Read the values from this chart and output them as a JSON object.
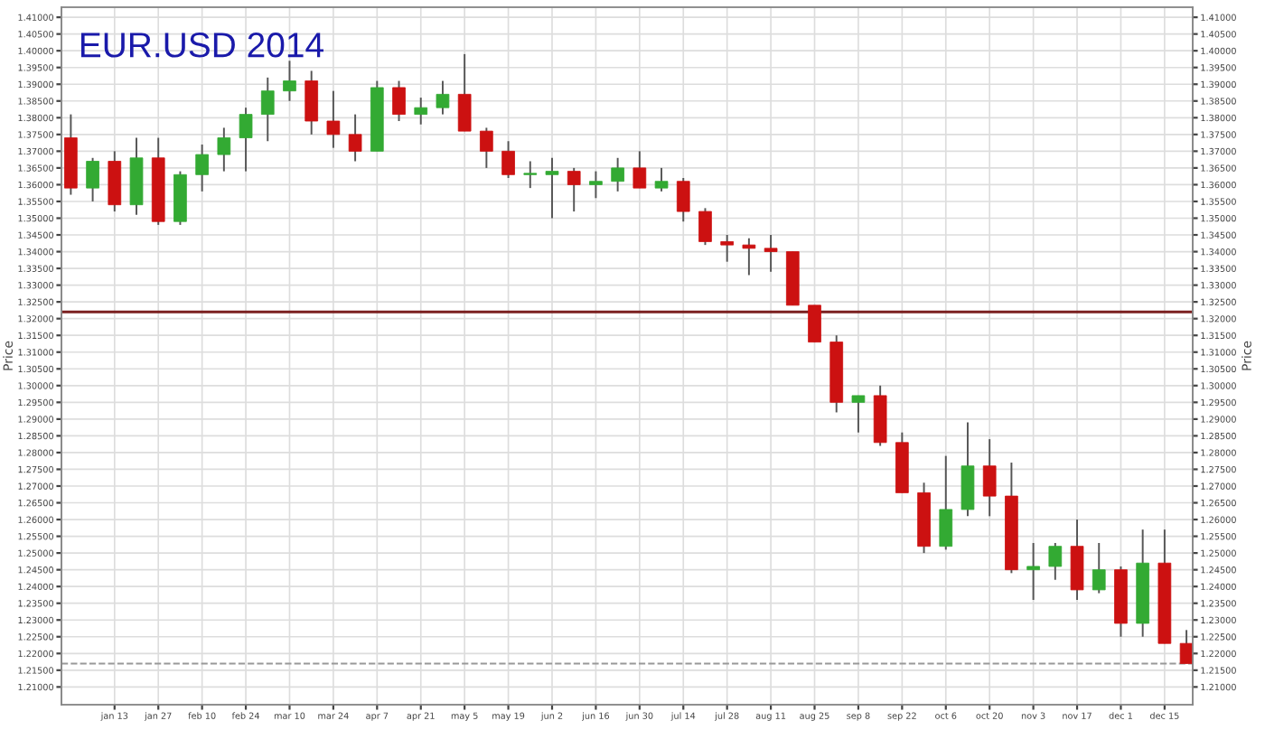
{
  "chart_data": {
    "type": "candlestick",
    "title": "EUR.USD 2014",
    "ylabel": "Price",
    "y2label": "Price",
    "x": [
      "2013-12-30",
      "2014-01-06",
      "2014-01-13",
      "2014-01-20",
      "2014-01-27",
      "2014-02-03",
      "2014-02-10",
      "2014-02-17",
      "2014-02-24",
      "2014-03-03",
      "2014-03-10",
      "2014-03-17",
      "2014-03-24",
      "2014-03-31",
      "2014-04-07",
      "2014-04-14",
      "2014-04-21",
      "2014-04-28",
      "2014-05-05",
      "2014-05-12",
      "2014-05-19",
      "2014-05-26",
      "2014-06-02",
      "2014-06-09",
      "2014-06-16",
      "2014-06-23",
      "2014-06-30",
      "2014-07-07",
      "2014-07-14",
      "2014-07-21",
      "2014-07-28",
      "2014-08-04",
      "2014-08-11",
      "2014-08-18",
      "2014-08-25",
      "2014-09-01",
      "2014-09-08",
      "2014-09-15",
      "2014-09-22",
      "2014-09-29",
      "2014-10-06",
      "2014-10-13",
      "2014-10-20",
      "2014-10-27",
      "2014-11-03",
      "2014-11-10",
      "2014-11-17",
      "2014-11-24",
      "2014-12-01",
      "2014-12-08",
      "2014-12-15",
      "2014-12-22"
    ],
    "ohlc": [
      [
        1.374,
        1.381,
        1.357,
        1.359
      ],
      [
        1.359,
        1.368,
        1.355,
        1.367
      ],
      [
        1.367,
        1.37,
        1.352,
        1.354
      ],
      [
        1.354,
        1.374,
        1.351,
        1.368
      ],
      [
        1.368,
        1.374,
        1.348,
        1.349
      ],
      [
        1.349,
        1.364,
        1.348,
        1.363
      ],
      [
        1.363,
        1.372,
        1.358,
        1.369
      ],
      [
        1.369,
        1.377,
        1.364,
        1.374
      ],
      [
        1.374,
        1.383,
        1.364,
        1.381
      ],
      [
        1.381,
        1.392,
        1.373,
        1.388
      ],
      [
        1.388,
        1.397,
        1.385,
        1.391
      ],
      [
        1.391,
        1.394,
        1.375,
        1.379
      ],
      [
        1.379,
        1.388,
        1.371,
        1.375
      ],
      [
        1.375,
        1.381,
        1.367,
        1.37
      ],
      [
        1.37,
        1.391,
        1.37,
        1.389
      ],
      [
        1.389,
        1.391,
        1.379,
        1.381
      ],
      [
        1.381,
        1.386,
        1.378,
        1.383
      ],
      [
        1.383,
        1.391,
        1.381,
        1.387
      ],
      [
        1.387,
        1.399,
        1.376,
        1.376
      ],
      [
        1.376,
        1.377,
        1.365,
        1.37
      ],
      [
        1.37,
        1.373,
        1.362,
        1.363
      ],
      [
        1.363,
        1.367,
        1.359,
        1.363
      ],
      [
        1.363,
        1.368,
        1.35,
        1.364
      ],
      [
        1.364,
        1.365,
        1.352,
        1.36
      ],
      [
        1.36,
        1.364,
        1.356,
        1.361
      ],
      [
        1.361,
        1.368,
        1.358,
        1.365
      ],
      [
        1.365,
        1.37,
        1.359,
        1.359
      ],
      [
        1.359,
        1.365,
        1.358,
        1.361
      ],
      [
        1.361,
        1.362,
        1.349,
        1.352
      ],
      [
        1.352,
        1.353,
        1.342,
        1.343
      ],
      [
        1.343,
        1.345,
        1.337,
        1.342
      ],
      [
        1.342,
        1.344,
        1.333,
        1.341
      ],
      [
        1.341,
        1.345,
        1.334,
        1.34
      ],
      [
        1.34,
        1.34,
        1.324,
        1.324
      ],
      [
        1.324,
        1.324,
        1.313,
        1.313
      ],
      [
        1.313,
        1.315,
        1.292,
        1.295
      ],
      [
        1.295,
        1.297,
        1.286,
        1.297
      ],
      [
        1.297,
        1.3,
        1.282,
        1.283
      ],
      [
        1.283,
        1.286,
        1.268,
        1.268
      ],
      [
        1.268,
        1.271,
        1.25,
        1.252
      ],
      [
        1.252,
        1.279,
        1.251,
        1.263
      ],
      [
        1.263,
        1.289,
        1.261,
        1.276
      ],
      [
        1.276,
        1.284,
        1.261,
        1.267
      ],
      [
        1.267,
        1.277,
        1.244,
        1.245
      ],
      [
        1.245,
        1.253,
        1.236,
        1.246
      ],
      [
        1.246,
        1.253,
        1.242,
        1.252
      ],
      [
        1.252,
        1.26,
        1.236,
        1.239
      ],
      [
        1.239,
        1.253,
        1.238,
        1.245
      ],
      [
        1.245,
        1.246,
        1.225,
        1.229
      ],
      [
        1.229,
        1.257,
        1.225,
        1.247
      ],
      [
        1.247,
        1.257,
        1.223,
        1.223
      ],
      [
        1.223,
        1.227,
        1.217,
        1.217
      ]
    ],
    "colors": [
      "#cc1111",
      "#33aa33",
      "#cc1111",
      "#33aa33",
      "#cc1111",
      "#33aa33",
      "#33aa33",
      "#33aa33",
      "#33aa33",
      "#33aa33",
      "#33aa33",
      "#cc1111",
      "#cc1111",
      "#cc1111",
      "#33aa33",
      "#cc1111",
      "#33aa33",
      "#33aa33",
      "#cc1111",
      "#cc1111",
      "#cc1111",
      "#33aa33",
      "#33aa33",
      "#cc1111",
      "#33aa33",
      "#33aa33",
      "#cc1111",
      "#33aa33",
      "#cc1111",
      "#cc1111",
      "#cc1111",
      "#cc1111",
      "#cc1111",
      "#cc1111",
      "#cc1111",
      "#cc1111",
      "#33aa33",
      "#cc1111",
      "#cc1111",
      "#cc1111",
      "#33aa33",
      "#33aa33",
      "#cc1111",
      "#cc1111",
      "#33aa33",
      "#33aa33",
      "#cc1111",
      "#33aa33",
      "#cc1111",
      "#33aa33",
      "#cc1111",
      "#cc1111"
    ],
    "xlim": [
      "2013-12-27",
      "2014-12-24"
    ],
    "xticks": [
      {
        "value": "2014-01-13",
        "label": "jan 13"
      },
      {
        "value": "2014-01-27",
        "label": "jan 27"
      },
      {
        "value": "2014-02-10",
        "label": "feb 10"
      },
      {
        "value": "2014-02-24",
        "label": "feb 24"
      },
      {
        "value": "2014-03-10",
        "label": "mar 10"
      },
      {
        "value": "2014-03-24",
        "label": "mar 24"
      },
      {
        "value": "2014-04-07",
        "label": "apr 7"
      },
      {
        "value": "2014-04-21",
        "label": "apr 21"
      },
      {
        "value": "2014-05-05",
        "label": "may 5"
      },
      {
        "value": "2014-05-19",
        "label": "may 19"
      },
      {
        "value": "2014-06-02",
        "label": "jun 2"
      },
      {
        "value": "2014-06-16",
        "label": "jun 16"
      },
      {
        "value": "2014-06-30",
        "label": "jun 30"
      },
      {
        "value": "2014-07-14",
        "label": "jul 14"
      },
      {
        "value": "2014-07-28",
        "label": "jul 28"
      },
      {
        "value": "2014-08-11",
        "label": "aug 11"
      },
      {
        "value": "2014-08-25",
        "label": "aug 25"
      },
      {
        "value": "2014-09-08",
        "label": "sep 8"
      },
      {
        "value": "2014-09-22",
        "label": "sep 22"
      },
      {
        "value": "2014-10-06",
        "label": "oct 6"
      },
      {
        "value": "2014-10-20",
        "label": "oct 20"
      },
      {
        "value": "2014-11-03",
        "label": "nov 3"
      },
      {
        "value": "2014-11-17",
        "label": "nov 17"
      },
      {
        "value": "2014-12-01",
        "label": "dec 1"
      },
      {
        "value": "2014-12-15",
        "label": "dec 15"
      }
    ],
    "ylim": [
      1.2047,
      1.413
    ],
    "yticks": [
      {
        "value": 1.21,
        "label": "1.21000"
      },
      {
        "value": 1.215,
        "label": "1.21500"
      },
      {
        "value": 1.22,
        "label": "1.22000"
      },
      {
        "value": 1.225,
        "label": "1.22500"
      },
      {
        "value": 1.23,
        "label": "1.23000"
      },
      {
        "value": 1.235,
        "label": "1.23500"
      },
      {
        "value": 1.24,
        "label": "1.24000"
      },
      {
        "value": 1.245,
        "label": "1.24500"
      },
      {
        "value": 1.25,
        "label": "1.25000"
      },
      {
        "value": 1.255,
        "label": "1.25500"
      },
      {
        "value": 1.26,
        "label": "1.26000"
      },
      {
        "value": 1.265,
        "label": "1.26500"
      },
      {
        "value": 1.27,
        "label": "1.27000"
      },
      {
        "value": 1.275,
        "label": "1.27500"
      },
      {
        "value": 1.28,
        "label": "1.28000"
      },
      {
        "value": 1.285,
        "label": "1.28500"
      },
      {
        "value": 1.29,
        "label": "1.29000"
      },
      {
        "value": 1.295,
        "label": "1.29500"
      },
      {
        "value": 1.3,
        "label": "1.30000"
      },
      {
        "value": 1.305,
        "label": "1.30500"
      },
      {
        "value": 1.31,
        "label": "1.31000"
      },
      {
        "value": 1.315,
        "label": "1.31500"
      },
      {
        "value": 1.32,
        "label": "1.32000"
      },
      {
        "value": 1.325,
        "label": "1.32500"
      },
      {
        "value": 1.33,
        "label": "1.33000"
      },
      {
        "value": 1.335,
        "label": "1.33500"
      },
      {
        "value": 1.34,
        "label": "1.34000"
      },
      {
        "value": 1.345,
        "label": "1.34500"
      },
      {
        "value": 1.35,
        "label": "1.35000"
      },
      {
        "value": 1.355,
        "label": "1.35500"
      },
      {
        "value": 1.36,
        "label": "1.36000"
      },
      {
        "value": 1.365,
        "label": "1.36500"
      },
      {
        "value": 1.37,
        "label": "1.37000"
      },
      {
        "value": 1.375,
        "label": "1.37500"
      },
      {
        "value": 1.38,
        "label": "1.38000"
      },
      {
        "value": 1.385,
        "label": "1.38500"
      },
      {
        "value": 1.39,
        "label": "1.39000"
      },
      {
        "value": 1.395,
        "label": "1.39500"
      },
      {
        "value": 1.4,
        "label": "1.40000"
      },
      {
        "value": 1.405,
        "label": "1.40500"
      },
      {
        "value": 1.41,
        "label": "1.41000"
      }
    ],
    "y2lim": [
      1.2047,
      1.413
    ],
    "y2ticks": [
      {
        "value": 1.21,
        "label": "1.21000"
      },
      {
        "value": 1.215,
        "label": "1.21500"
      },
      {
        "value": 1.22,
        "label": "1.22000"
      },
      {
        "value": 1.225,
        "label": "1.22500"
      },
      {
        "value": 1.23,
        "label": "1.23000"
      },
      {
        "value": 1.235,
        "label": "1.23500"
      },
      {
        "value": 1.24,
        "label": "1.24000"
      },
      {
        "value": 1.245,
        "label": "1.24500"
      },
      {
        "value": 1.25,
        "label": "1.25000"
      },
      {
        "value": 1.255,
        "label": "1.25500"
      },
      {
        "value": 1.26,
        "label": "1.26000"
      },
      {
        "value": 1.265,
        "label": "1.26500"
      },
      {
        "value": 1.27,
        "label": "1.27000"
      },
      {
        "value": 1.275,
        "label": "1.27500"
      },
      {
        "value": 1.28,
        "label": "1.28000"
      },
      {
        "value": 1.285,
        "label": "1.28500"
      },
      {
        "value": 1.29,
        "label": "1.29000"
      },
      {
        "value": 1.295,
        "label": "1.29500"
      },
      {
        "value": 1.3,
        "label": "1.30000"
      },
      {
        "value": 1.305,
        "label": "1.30500"
      },
      {
        "value": 1.31,
        "label": "1.31000"
      },
      {
        "value": 1.315,
        "label": "1.31500"
      },
      {
        "value": 1.32,
        "label": "1.32000"
      },
      {
        "value": 1.325,
        "label": "1.32500"
      },
      {
        "value": 1.33,
        "label": "1.33000"
      },
      {
        "value": 1.335,
        "label": "1.33500"
      },
      {
        "value": 1.34,
        "label": "1.34000"
      },
      {
        "value": 1.345,
        "label": "1.34500"
      },
      {
        "value": 1.35,
        "label": "1.35000"
      },
      {
        "value": 1.355,
        "label": "1.35500"
      },
      {
        "value": 1.36,
        "label": "1.36000"
      },
      {
        "value": 1.365,
        "label": "1.36500"
      },
      {
        "value": 1.37,
        "label": "1.37000"
      },
      {
        "value": 1.375,
        "label": "1.37500"
      },
      {
        "value": 1.38,
        "label": "1.38000"
      },
      {
        "value": 1.385,
        "label": "1.38500"
      },
      {
        "value": 1.39,
        "label": "1.39000"
      },
      {
        "value": 1.395,
        "label": "1.39500"
      },
      {
        "value": 1.4,
        "label": "1.40000"
      },
      {
        "value": 1.405,
        "label": "1.40500"
      },
      {
        "value": 1.41,
        "label": "1.41000"
      }
    ],
    "grid": true,
    "ref_lines": [
      {
        "axis": "y",
        "value": 1.322,
        "color": "#7a1f1f",
        "line_style": "solid"
      },
      {
        "axis": "y",
        "value": 1.217,
        "color": "#999999",
        "line_style": "dashed"
      }
    ]
  }
}
